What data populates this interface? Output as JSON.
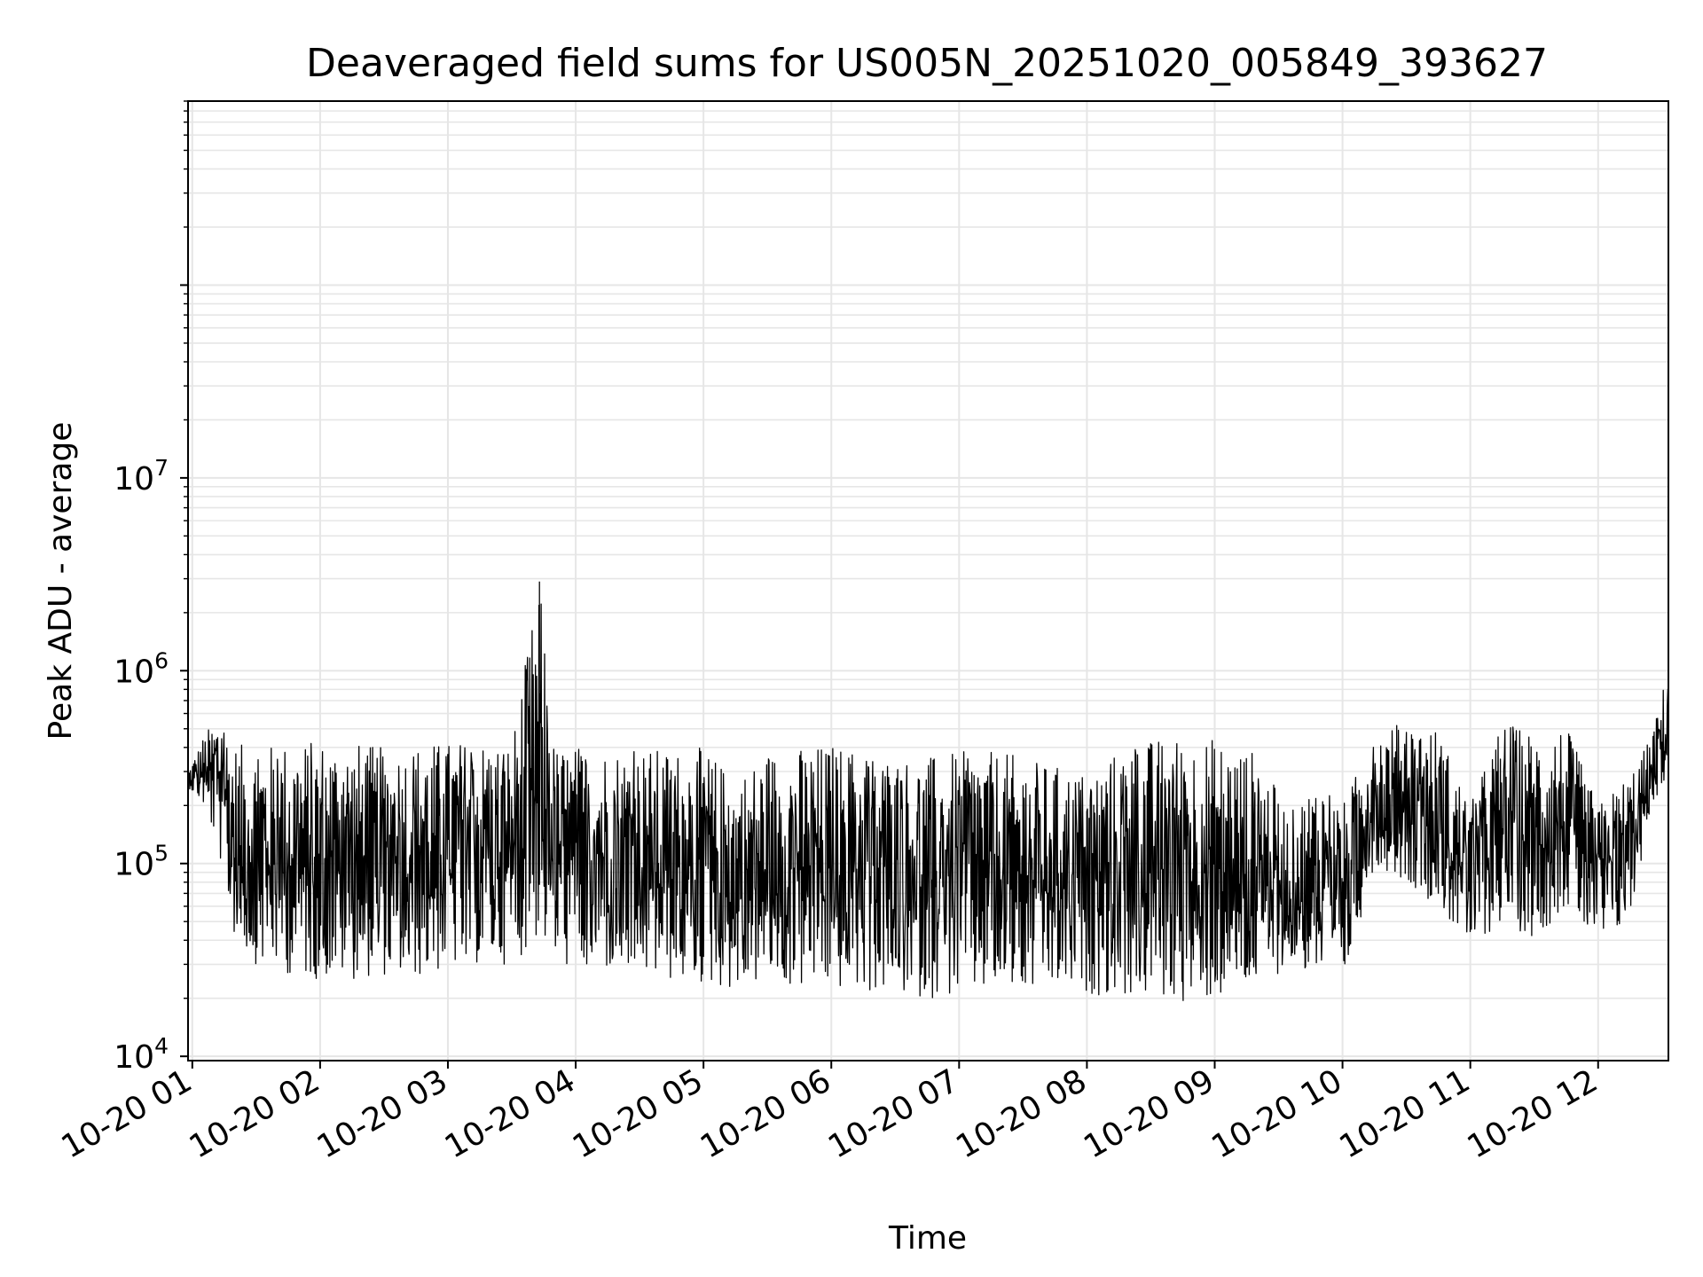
{
  "chart_data": {
    "type": "line",
    "title": "Deaveraged field sums for US005N_20251020_005849_393627",
    "xlabel": "Time",
    "ylabel": "Peak ADU - average",
    "xlim": [
      "2025-10-20 00:58",
      "2025-10-20 12:33"
    ],
    "ylim": [
      9500,
      900000000
    ],
    "yscale": "log",
    "grid": true,
    "grid_color": "#e6e6e6",
    "line_color": "#000000",
    "x_ticks": [
      "10-20 01",
      "10-20 02",
      "10-20 03",
      "10-20 04",
      "10-20 05",
      "10-20 06",
      "10-20 07",
      "10-20 08",
      "10-20 09",
      "10-20 10",
      "10-20 11",
      "10-20 12"
    ],
    "y_ticks": [
      {
        "base": "10",
        "exp": "4",
        "value": 10000
      },
      {
        "base": "10",
        "exp": "5",
        "value": 100000
      },
      {
        "base": "10",
        "exp": "6",
        "value": 1000000
      },
      {
        "base": "10",
        "exp": "7",
        "value": 10000000
      }
    ],
    "series": [
      {
        "x": [
          "00:58",
          "01:05",
          "01:12",
          "01:20",
          "01:30",
          "01:40",
          "01:50",
          "02:00",
          "02:15",
          "02:30",
          "02:45",
          "03:00",
          "03:15",
          "03:30",
          "03:43",
          "03:50",
          "04:00",
          "04:15",
          "04:30",
          "04:45",
          "05:00",
          "05:15",
          "05:30",
          "05:45",
          "06:00",
          "06:20",
          "06:40",
          "07:00",
          "07:20",
          "07:40",
          "08:00",
          "08:20",
          "08:40",
          "09:00",
          "09:20",
          "09:35",
          "09:50",
          "10:00",
          "10:15",
          "10:30",
          "10:45",
          "11:00",
          "11:15",
          "11:30",
          "11:45",
          "12:00",
          "12:15",
          "12:25",
          "12:33"
        ],
        "lower": [
          250000,
          200000,
          120000,
          40000,
          30000,
          28000,
          25000,
          25000,
          25000,
          26000,
          25000,
          28000,
          30000,
          30000,
          40000,
          30000,
          28000,
          27000,
          25000,
          24000,
          23000,
          22000,
          24000,
          22000,
          22000,
          21000,
          20000,
          20000,
          21000,
          21000,
          21000,
          20000,
          19000,
          19000,
          22000,
          30000,
          25000,
          22000,
          100000,
          80000,
          60000,
          35000,
          50000,
          40000,
          60000,
          35000,
          50000,
          200000,
          280000
        ],
        "upper": [
          300000,
          450000,
          600000,
          420000,
          400000,
          420000,
          430000,
          440000,
          430000,
          400000,
          420000,
          430000,
          440000,
          430000,
          2900000,
          400000,
          410000,
          400000,
          400000,
          390000,
          400000,
          280000,
          380000,
          400000,
          420000,
          380000,
          350000,
          380000,
          380000,
          330000,
          300000,
          420000,
          460000,
          450000,
          380000,
          180000,
          300000,
          200000,
          480000,
          550000,
          500000,
          200000,
          550000,
          480000,
          520000,
          200000,
          300000,
          450000,
          1050000
        ]
      }
    ]
  }
}
